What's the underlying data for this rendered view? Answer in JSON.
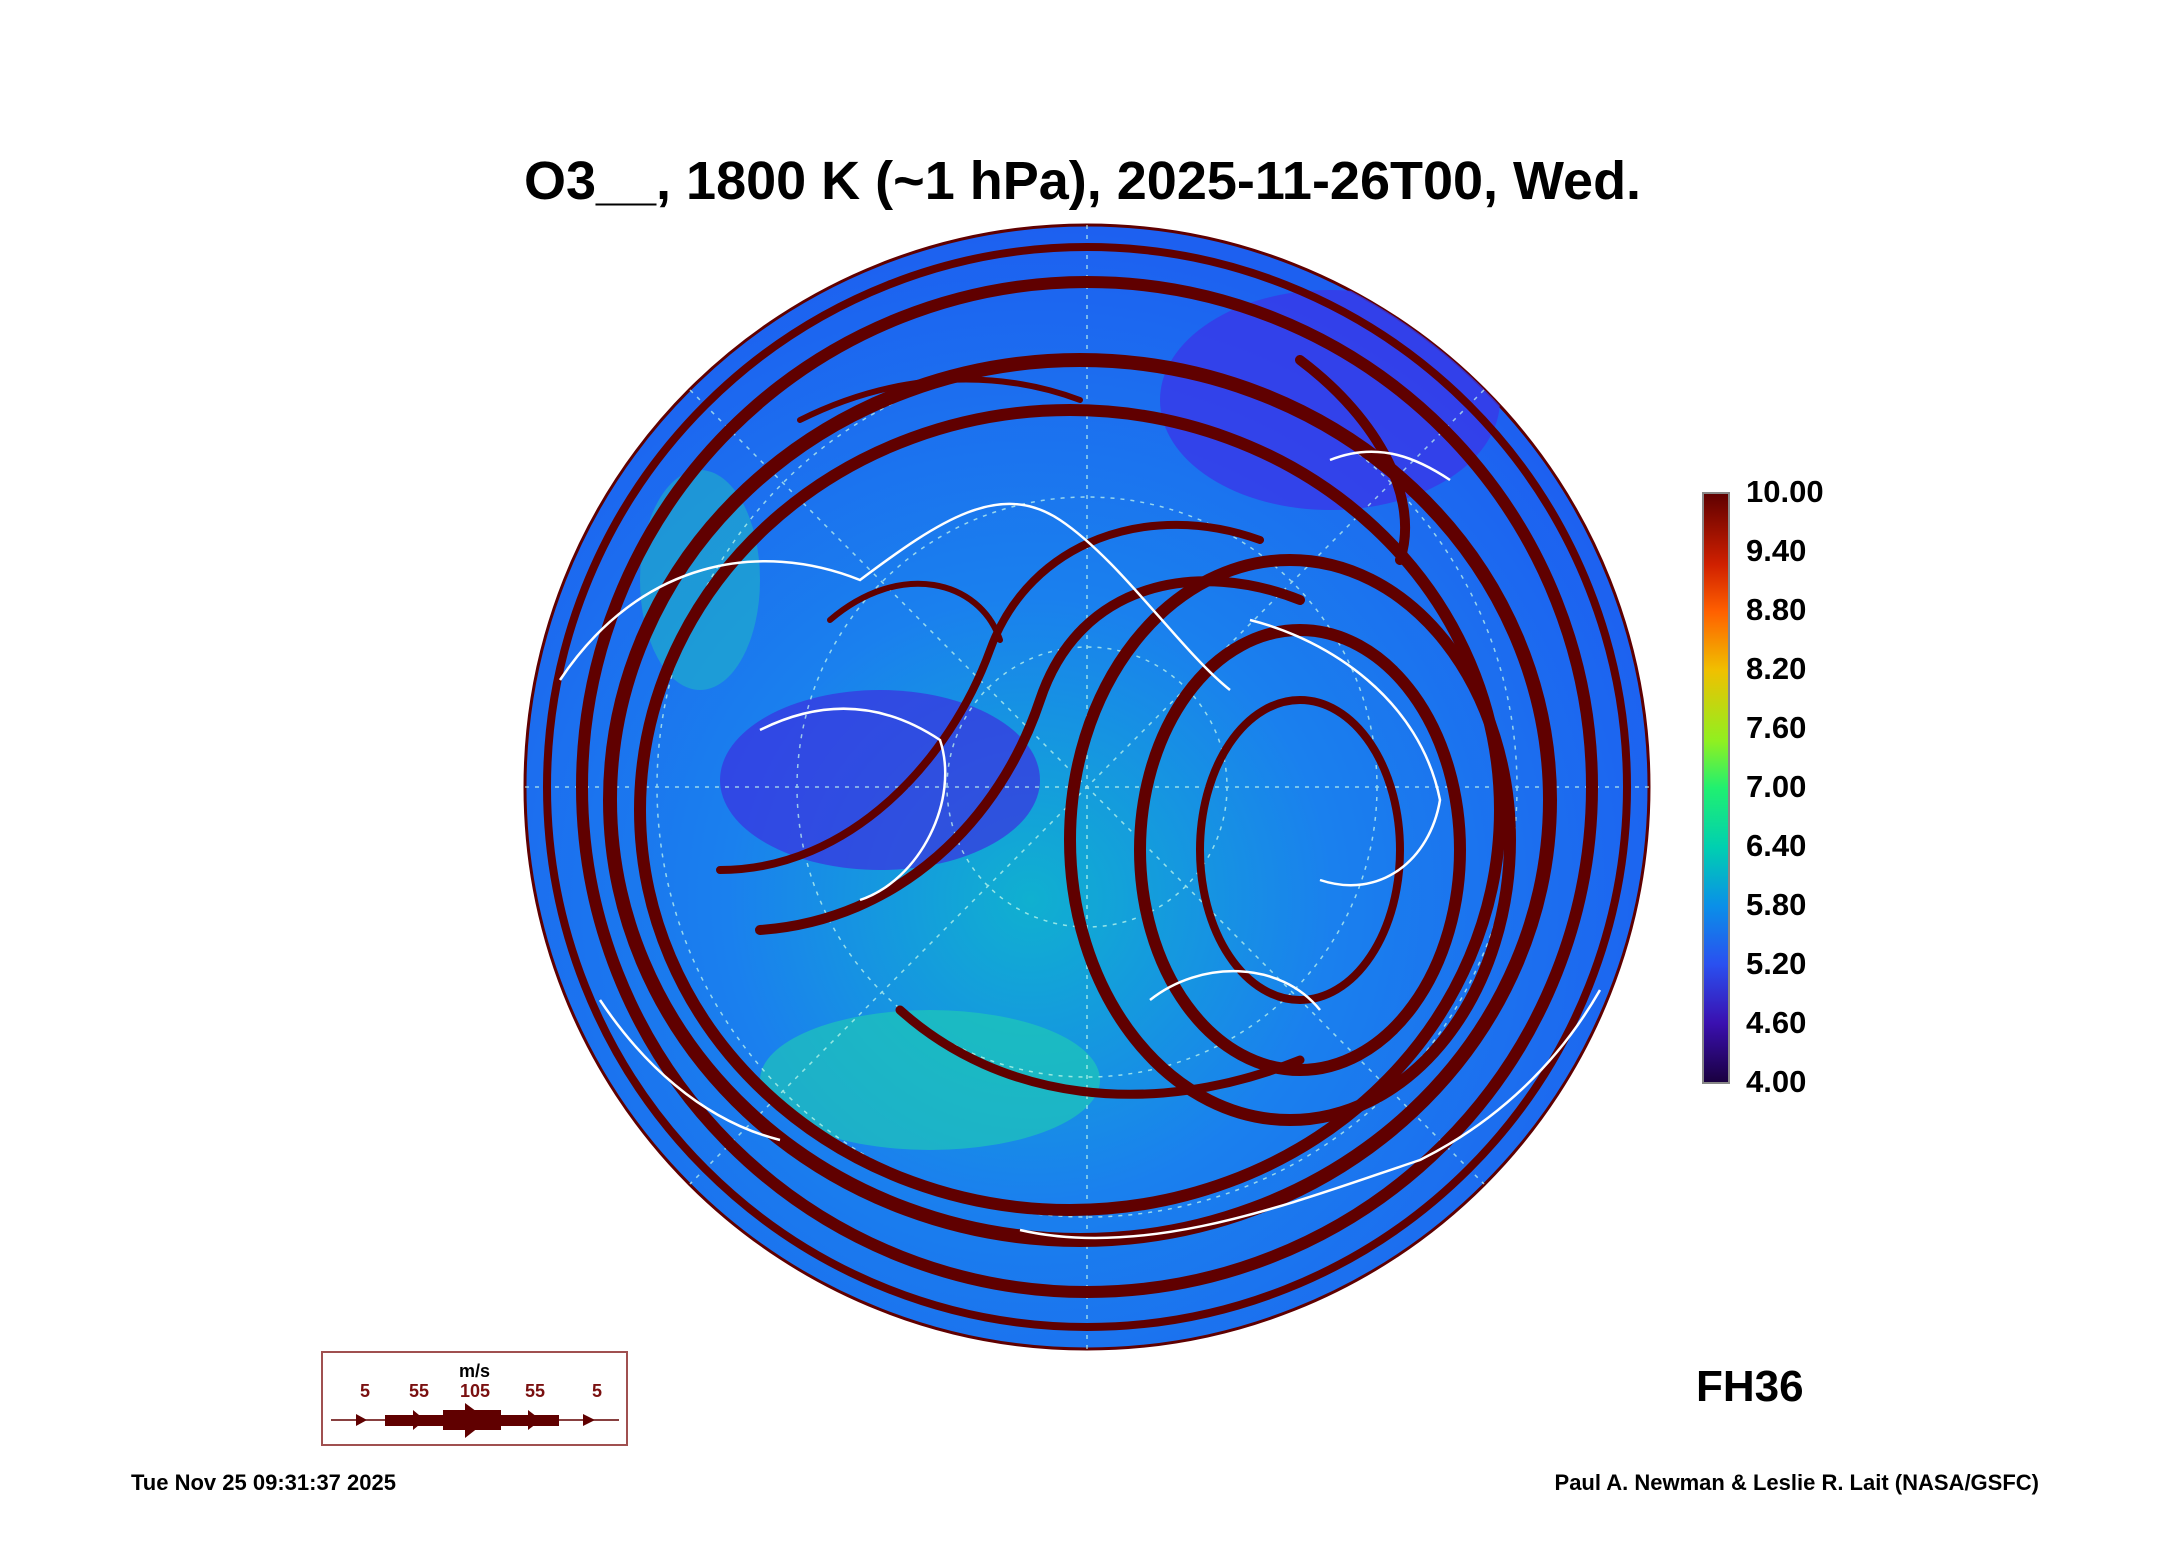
{
  "chart_data": {
    "type": "heatmap",
    "title": "O3__, 1800 K (~1 hPa), 2025-11-26T00, Wed.",
    "projection": "polar stereographic, Northern Hemisphere",
    "variable": "O3__",
    "colorbar": {
      "ticks": [
        "10.00",
        "9.40",
        "8.80",
        "8.20",
        "7.60",
        "7.00",
        "6.40",
        "5.80",
        "5.20",
        "4.60",
        "4.00"
      ],
      "range": [
        4.0,
        10.0
      ]
    },
    "wind_legend": {
      "unit": "m/s",
      "labels": [
        "5",
        "55",
        "105",
        "55",
        "5"
      ]
    },
    "forecast_hour": "FH36"
  },
  "footer": {
    "timestamp": "Tue Nov 25 09:31:37 2025",
    "credit": "Paul A. Newman & Leslie R. Lait (NASA/GSFC)"
  },
  "colors": {
    "wind": "#600000",
    "coast": "#ffffff",
    "background_field": "#1a70f0"
  }
}
